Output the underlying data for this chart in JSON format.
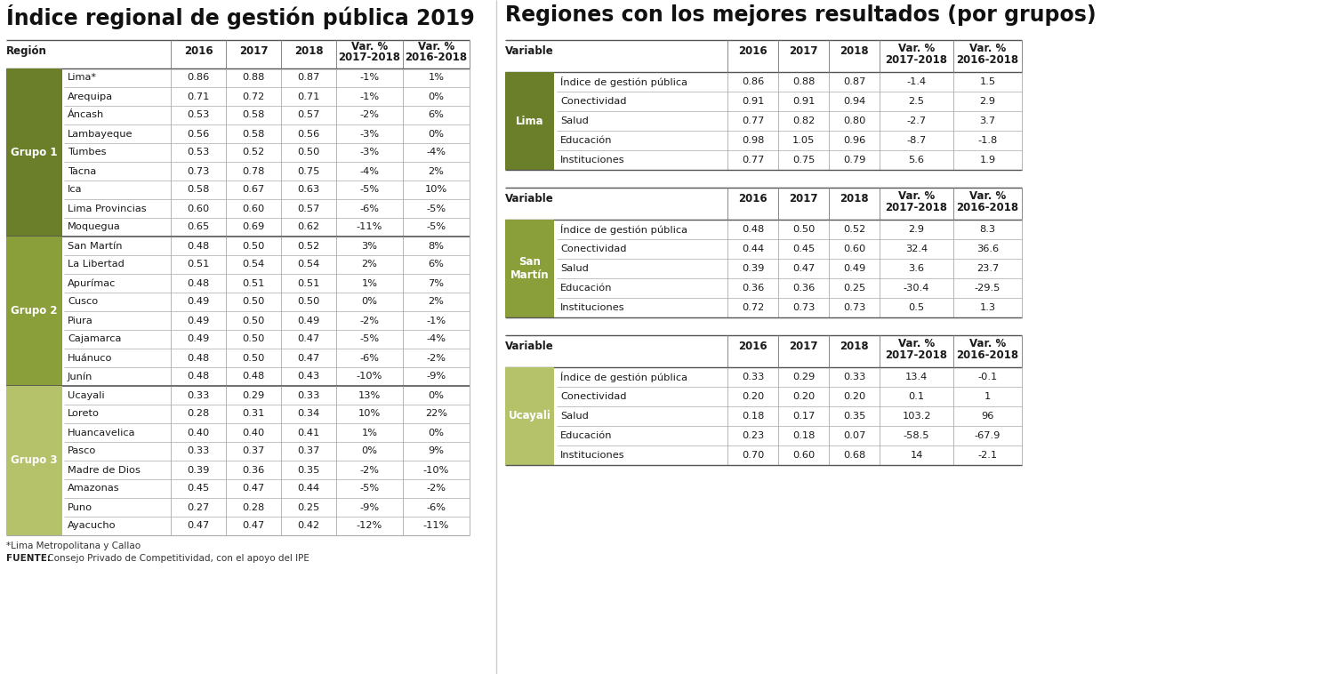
{
  "left_title": "Índice regional de gestión pública 2019",
  "right_title": "Regiones con los mejores resultados (por grupos)",
  "groups": [
    {
      "name": "Grupo 1",
      "color": "#6b7f2a",
      "rows": [
        [
          "Lima*",
          "0.86",
          "0.88",
          "0.87",
          "-1%",
          "1%"
        ],
        [
          "Arequipa",
          "0.71",
          "0.72",
          "0.71",
          "-1%",
          "0%"
        ],
        [
          "Áncash",
          "0.53",
          "0.58",
          "0.57",
          "-2%",
          "6%"
        ],
        [
          "Lambayeque",
          "0.56",
          "0.58",
          "0.56",
          "-3%",
          "0%"
        ],
        [
          "Tumbes",
          "0.53",
          "0.52",
          "0.50",
          "-3%",
          "-4%"
        ],
        [
          "Tacna",
          "0.73",
          "0.78",
          "0.75",
          "-4%",
          "2%"
        ],
        [
          "Ica",
          "0.58",
          "0.67",
          "0.63",
          "-5%",
          "10%"
        ],
        [
          "Lima Provincias",
          "0.60",
          "0.60",
          "0.57",
          "-6%",
          "-5%"
        ],
        [
          "Moquegua",
          "0.65",
          "0.69",
          "0.62",
          "-11%",
          "-5%"
        ]
      ]
    },
    {
      "name": "Grupo 2",
      "color": "#8a9e3a",
      "rows": [
        [
          "San Martín",
          "0.48",
          "0.50",
          "0.52",
          "3%",
          "8%"
        ],
        [
          "La Libertad",
          "0.51",
          "0.54",
          "0.54",
          "2%",
          "6%"
        ],
        [
          "Apurímac",
          "0.48",
          "0.51",
          "0.51",
          "1%",
          "7%"
        ],
        [
          "Cusco",
          "0.49",
          "0.50",
          "0.50",
          "0%",
          "2%"
        ],
        [
          "Piura",
          "0.49",
          "0.50",
          "0.49",
          "-2%",
          "-1%"
        ],
        [
          "Cajamarca",
          "0.49",
          "0.50",
          "0.47",
          "-5%",
          "-4%"
        ],
        [
          "Huánuco",
          "0.48",
          "0.50",
          "0.47",
          "-6%",
          "-2%"
        ],
        [
          "Junín",
          "0.48",
          "0.48",
          "0.43",
          "-10%",
          "-9%"
        ]
      ]
    },
    {
      "name": "Grupo 3",
      "color": "#b5c26a",
      "rows": [
        [
          "Ucayali",
          "0.33",
          "0.29",
          "0.33",
          "13%",
          "0%"
        ],
        [
          "Loreto",
          "0.28",
          "0.31",
          "0.34",
          "10%",
          "22%"
        ],
        [
          "Huancavelica",
          "0.40",
          "0.40",
          "0.41",
          "1%",
          "0%"
        ],
        [
          "Pasco",
          "0.33",
          "0.37",
          "0.37",
          "0%",
          "9%"
        ],
        [
          "Madre de Dios",
          "0.39",
          "0.36",
          "0.35",
          "-2%",
          "-10%"
        ],
        [
          "Amazonas",
          "0.45",
          "0.47",
          "0.44",
          "-5%",
          "-2%"
        ],
        [
          "Puno",
          "0.27",
          "0.28",
          "0.25",
          "-9%",
          "-6%"
        ],
        [
          "Ayacucho",
          "0.47",
          "0.47",
          "0.42",
          "-12%",
          "-11%"
        ]
      ]
    }
  ],
  "footnote1": "*Lima Metropolitana y Callao",
  "footnote2_bold": "FUENTE:",
  "footnote2_rest": " Consejo Privado de Competitividad, con el apoyo del IPE",
  "right_tables": [
    {
      "region": "Lima",
      "color": "#6b7f2a",
      "rows": [
        [
          "Índice de gestión pública",
          "0.86",
          "0.88",
          "0.87",
          "-1.4",
          "1.5"
        ],
        [
          "Conectividad",
          "0.91",
          "0.91",
          "0.94",
          "2.5",
          "2.9"
        ],
        [
          "Salud",
          "0.77",
          "0.82",
          "0.80",
          "-2.7",
          "3.7"
        ],
        [
          "Educación",
          "0.98",
          "1.05",
          "0.96",
          "-8.7",
          "-1.8"
        ],
        [
          "Instituciones",
          "0.77",
          "0.75",
          "0.79",
          "5.6",
          "1.9"
        ]
      ]
    },
    {
      "region": "San\nMartín",
      "color": "#8a9e3a",
      "rows": [
        [
          "Índice de gestión pública",
          "0.48",
          "0.50",
          "0.52",
          "2.9",
          "8.3"
        ],
        [
          "Conectividad",
          "0.44",
          "0.45",
          "0.60",
          "32.4",
          "36.6"
        ],
        [
          "Salud",
          "0.39",
          "0.47",
          "0.49",
          "3.6",
          "23.7"
        ],
        [
          "Educación",
          "0.36",
          "0.36",
          "0.25",
          "-30.4",
          "-29.5"
        ],
        [
          "Instituciones",
          "0.72",
          "0.73",
          "0.73",
          "0.5",
          "1.3"
        ]
      ]
    },
    {
      "region": "Ucayali",
      "color": "#b5c26a",
      "rows": [
        [
          "Índice de gestión pública",
          "0.33",
          "0.29",
          "0.33",
          "13.4",
          "-0.1"
        ],
        [
          "Conectividad",
          "0.20",
          "0.20",
          "0.20",
          "0.1",
          "1"
        ],
        [
          "Salud",
          "0.18",
          "0.17",
          "0.35",
          "103.2",
          "96"
        ],
        [
          "Educación",
          "0.23",
          "0.18",
          "0.07",
          "-58.5",
          "-67.9"
        ],
        [
          "Instituciones",
          "0.70",
          "0.60",
          "0.68",
          "14",
          "-2.1"
        ]
      ]
    }
  ]
}
